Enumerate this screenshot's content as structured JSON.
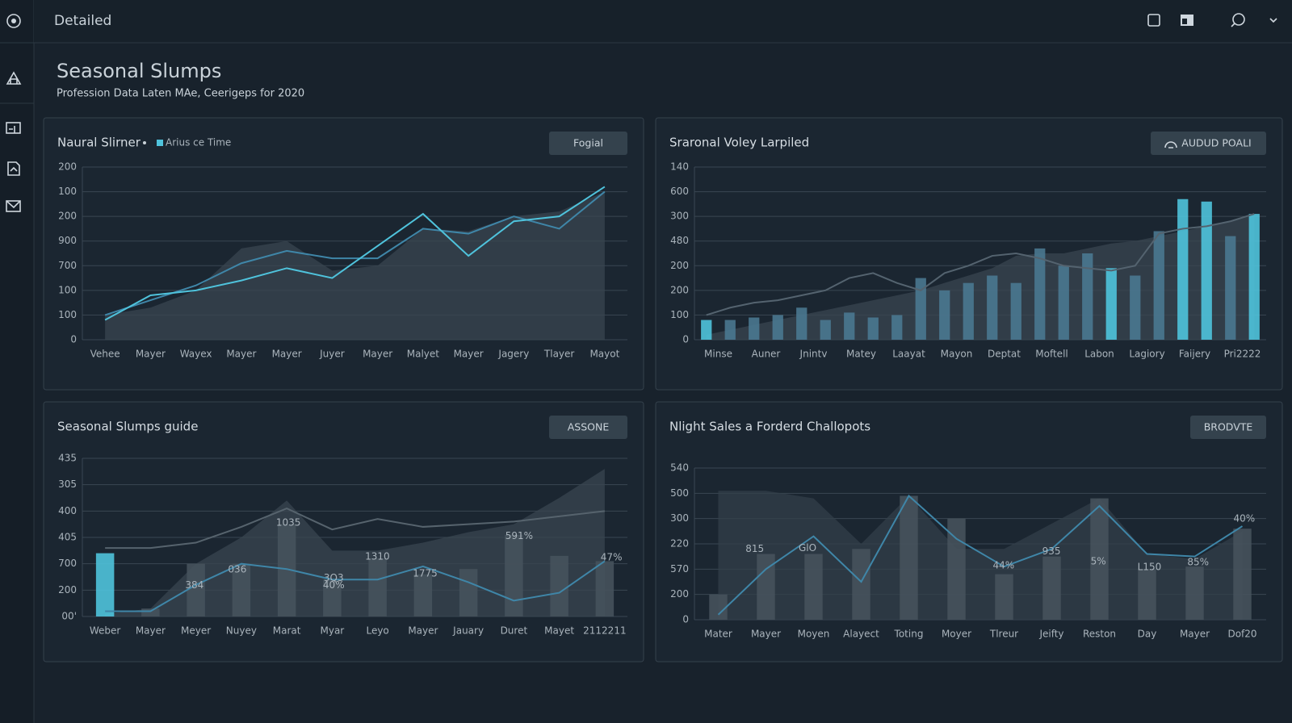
{
  "header": {
    "title": "Detailed"
  },
  "page": {
    "title": "Seasonal Slumps",
    "subtitle": "Profession Data Laten MAe, Ceerigeps for 2020"
  },
  "chart_data": [
    {
      "type": "combo",
      "title": "Naural Slirner",
      "button": "Fogial",
      "legend": true,
      "categories": [
        "Vehee",
        "Mayer",
        "Wayex",
        "Mayer",
        "Mayer",
        "Juyer",
        "Mayer",
        "Malyet",
        "Mayer",
        "Jagery",
        "Tlayer",
        "Mayot"
      ],
      "ylim": [
        0,
        7
      ],
      "yticks": [
        {
          "value": 0,
          "label": "0"
        },
        {
          "value": 1,
          "label": "100"
        },
        {
          "value": 2,
          "label": "100"
        },
        {
          "value": 3,
          "label": "700"
        },
        {
          "value": 4,
          "label": "900"
        },
        {
          "value": 5,
          "label": "200"
        },
        {
          "value": 6,
          "label": "100"
        },
        {
          "value": 7,
          "label": "200"
        }
      ],
      "series": [
        {
          "type": "area",
          "color": "#3a4650",
          "values": [
            1.0,
            1.3,
            2.0,
            3.7,
            4.0,
            2.8,
            3.0,
            4.5,
            4.4,
            5.0,
            5.2,
            6.0
          ]
        },
        {
          "type": "line",
          "color": "#3f86a8",
          "values": [
            1.0,
            1.6,
            2.2,
            3.1,
            3.6,
            3.3,
            3.3,
            4.5,
            4.3,
            5.0,
            4.5,
            6.0
          ]
        },
        {
          "type": "line",
          "name": "Arius ce Time",
          "color": "#4fc3dc",
          "values": [
            0.8,
            1.8,
            2.0,
            2.4,
            2.9,
            2.5,
            3.8,
            5.1,
            3.4,
            4.8,
            5.0,
            6.2
          ]
        }
      ]
    },
    {
      "type": "combo",
      "title": "Sraronal Voley Larpiled",
      "button": "AUDUD POALI",
      "categories": [
        "Minse",
        null,
        "Auner",
        null,
        "Jnintv",
        null,
        "Matey",
        null,
        "Laayat",
        null,
        "Mayon",
        null,
        "Deptat",
        null,
        "Moftell",
        null,
        "Labon",
        null,
        "Lagiory",
        null,
        "Faijery",
        null,
        "Pri2222",
        null
      ],
      "ylim": [
        0,
        7
      ],
      "yticks": [
        {
          "value": 0,
          "label": "0"
        },
        {
          "value": 1,
          "label": "100"
        },
        {
          "value": 2,
          "label": "200"
        },
        {
          "value": 3,
          "label": "200"
        },
        {
          "value": 4,
          "label": "480"
        },
        {
          "value": 5,
          "label": "300"
        },
        {
          "value": 6,
          "label": "600"
        },
        {
          "value": 7,
          "label": "140"
        }
      ],
      "series": [
        {
          "type": "area",
          "color": "#3a4650",
          "values": [
            0.2,
            0.4,
            0.6,
            0.8,
            1.0,
            1.2,
            1.4,
            1.6,
            1.8,
            2.0,
            2.3,
            2.6,
            2.9,
            3.4,
            3.5,
            3.5,
            3.7,
            3.9,
            4.0,
            4.2,
            4.4,
            4.6,
            4.8,
            5.1
          ]
        },
        {
          "type": "bar",
          "color": "#4a7890",
          "colors": [
            "#4fc3dc",
            "#4a7890",
            "#4a7890",
            "#4a7890",
            "#4a7890",
            "#4a7890",
            "#4a7890",
            "#4a7890",
            "#4a7890",
            "#4a7890",
            "#4a7890",
            "#4a7890",
            "#4a7890",
            "#4a7890",
            "#4a7890",
            "#4a7890",
            "#4a7890",
            "#4fc3dc",
            "#4a7890",
            "#4a7890",
            "#4fc3dc",
            "#4fc3dc",
            "#4a7890",
            "#4fc3dc"
          ],
          "values": [
            0.8,
            0.8,
            0.9,
            1.0,
            1.3,
            0.8,
            1.1,
            0.9,
            1.0,
            2.5,
            2.0,
            2.3,
            2.6,
            2.3,
            3.7,
            3.0,
            3.5,
            2.9,
            2.6,
            4.4,
            5.7,
            5.6,
            4.2,
            5.1
          ]
        },
        {
          "type": "line",
          "color": "#54636f",
          "values": [
            1.0,
            1.3,
            1.5,
            1.6,
            1.8,
            2.0,
            2.5,
            2.7,
            2.3,
            2.0,
            2.7,
            3.0,
            3.4,
            3.5,
            3.3,
            3.0,
            2.9,
            2.8,
            3.0,
            4.3,
            4.5,
            4.6,
            4.8,
            5.1
          ]
        }
      ]
    },
    {
      "type": "combo",
      "title": "Seasonal Slumps guide",
      "button": "ASSONE",
      "categories": [
        "Weber",
        "Mayer",
        "Meyer",
        "Nuyey",
        "Marat",
        "Myar",
        "Leyo",
        "Mayer",
        "Jauary",
        "Duret",
        "Mayet",
        "2112211"
      ],
      "ylim": [
        0,
        6
      ],
      "yticks": [
        {
          "value": 0,
          "label": "00'"
        },
        {
          "value": 1,
          "label": "200"
        },
        {
          "value": 2,
          "label": "700"
        },
        {
          "value": 3,
          "label": "405"
        },
        {
          "value": 4,
          "label": "400"
        },
        {
          "value": 5,
          "label": "305"
        },
        {
          "value": 6,
          "label": "435"
        }
      ],
      "annotations": [
        "384",
        "036",
        "1035",
        "3Q3",
        "40%",
        "1310",
        "1775",
        "591%",
        "47%"
      ],
      "series": [
        {
          "type": "area",
          "color": "#3a4650",
          "values": [
            0.1,
            0.3,
            2.0,
            3.0,
            4.4,
            2.5,
            2.5,
            2.8,
            3.2,
            3.5,
            4.5,
            5.6
          ]
        },
        {
          "type": "bar",
          "color": "#46525c",
          "colors": [
            "#4fc3dc",
            "#46525c",
            "#46525c",
            "#46525c",
            "#46525c",
            "#46525c",
            "#46525c",
            "#46525c",
            "#46525c",
            "#46525c",
            "#46525c",
            "#46525c"
          ],
          "values": [
            2.4,
            0.3,
            2.0,
            2.0,
            3.5,
            1.4,
            2.2,
            1.6,
            1.8,
            3.1,
            2.3,
            2.1
          ]
        },
        {
          "type": "line",
          "color": "#56636d",
          "values": [
            2.6,
            2.6,
            2.8,
            3.4,
            4.1,
            3.3,
            3.7,
            3.4,
            3.5,
            3.6,
            3.8,
            4.0
          ]
        },
        {
          "type": "line",
          "color": "#3f86a8",
          "values": [
            0.2,
            0.2,
            1.2,
            2.0,
            1.8,
            1.4,
            1.4,
            1.9,
            1.3,
            0.6,
            0.9,
            2.1
          ]
        }
      ]
    },
    {
      "type": "combo",
      "title": "Nlight Sales a Forderd Challopots",
      "button": "BRODVTE",
      "categories": [
        "Mater",
        "Mayer",
        "Moyen",
        "Alayect",
        "Toting",
        "Moyer",
        "Tlreur",
        "Jeifty",
        "Reston",
        "Day",
        "Mayer",
        "Dof20"
      ],
      "ylim": [
        0,
        6
      ],
      "yticks": [
        {
          "value": 0,
          "label": "0"
        },
        {
          "value": 1,
          "label": "200"
        },
        {
          "value": 2,
          "label": "570"
        },
        {
          "value": 3,
          "label": "220"
        },
        {
          "value": 4,
          "label": "300"
        },
        {
          "value": 5,
          "label": "500"
        },
        {
          "value": 6,
          "label": "540"
        }
      ],
      "annotations": [
        "815",
        "GlO",
        "44%",
        "935",
        "5%",
        "L150",
        "85%",
        "40%"
      ],
      "series": [
        {
          "type": "area",
          "color": "#333f49",
          "values": [
            5.1,
            5.1,
            4.8,
            3.0,
            4.9,
            2.8,
            2.8,
            3.8,
            4.8,
            2.6,
            2.4,
            3.5
          ]
        },
        {
          "type": "bar",
          "color": "#46525c",
          "values": [
            1.0,
            2.6,
            2.6,
            2.8,
            4.9,
            4.0,
            1.8,
            2.5,
            4.8,
            2.0,
            2.1,
            3.6
          ]
        },
        {
          "type": "line",
          "color": "#3f86a8",
          "values": [
            0.2,
            2.0,
            3.3,
            1.5,
            4.9,
            3.2,
            2.1,
            2.8,
            4.5,
            2.6,
            2.5,
            3.7
          ]
        }
      ]
    }
  ]
}
